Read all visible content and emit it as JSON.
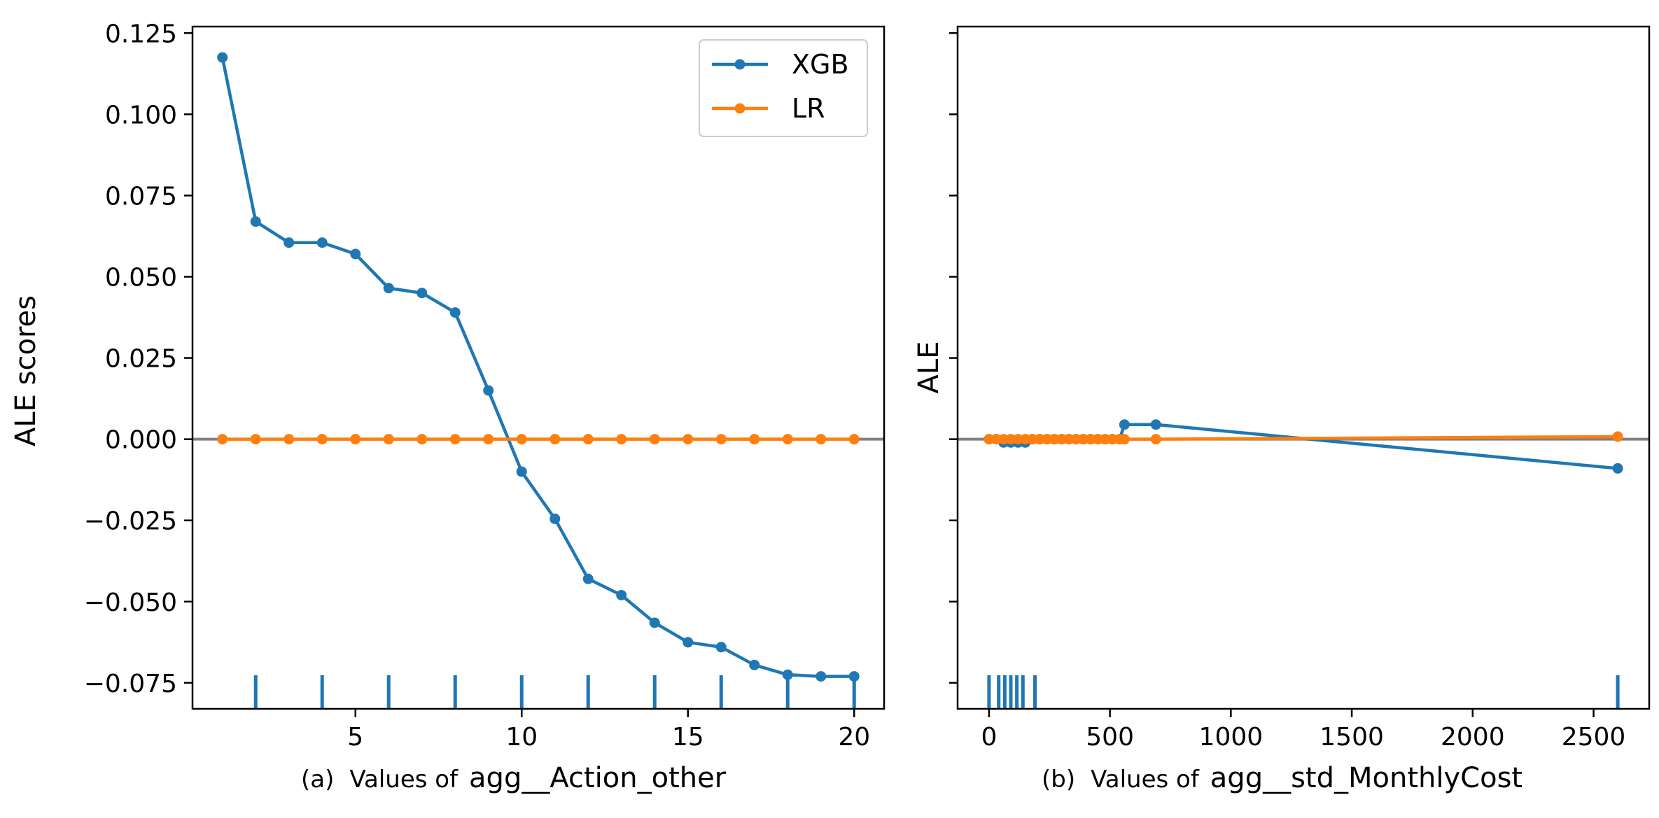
{
  "chart_data": [
    {
      "type": "line",
      "panel_caption": "(a)",
      "caption_prefix": "Values of",
      "xlabel": "agg__Action_other",
      "ylabel": "ALE scores",
      "xlim": [
        0.1,
        20.9
      ],
      "ylim": [
        -0.083,
        0.127
      ],
      "xticks": [
        5,
        10,
        15,
        20
      ],
      "yticks": [
        0.125,
        0.1,
        0.075,
        0.05,
        0.025,
        0.0,
        -0.025,
        -0.05,
        -0.075
      ],
      "ytick_labels": [
        "0.125",
        "0.100",
        "0.075",
        "0.050",
        "0.025",
        "0.000",
        "−0.025",
        "−0.050",
        "−0.075"
      ],
      "zero_line": true,
      "legend": {
        "position": "upper right",
        "entries": [
          "XGB",
          "LR"
        ]
      },
      "rug": [
        2,
        4,
        6,
        8,
        10,
        12,
        14,
        16,
        18,
        20
      ],
      "series": [
        {
          "name": "XGB",
          "color": "#1f77b4",
          "x": [
            1,
            2,
            3,
            4,
            5,
            6,
            7,
            8,
            9,
            10,
            11,
            12,
            13,
            14,
            15,
            16,
            17,
            18,
            19,
            20
          ],
          "y": [
            0.1175,
            0.067,
            0.0605,
            0.0605,
            0.057,
            0.0465,
            0.045,
            0.039,
            0.015,
            -0.01,
            -0.0245,
            -0.043,
            -0.048,
            -0.0565,
            -0.0625,
            -0.064,
            -0.0695,
            -0.0725,
            -0.073,
            -0.073
          ]
        },
        {
          "name": "LR",
          "color": "#ff7f0e",
          "x": [
            1,
            2,
            3,
            4,
            5,
            6,
            7,
            8,
            9,
            10,
            11,
            12,
            13,
            14,
            15,
            16,
            17,
            18,
            19,
            20
          ],
          "y": [
            0,
            0,
            0,
            0,
            0,
            0,
            0,
            0,
            0,
            0,
            0,
            0,
            0,
            0,
            0,
            0,
            0,
            0,
            0,
            0
          ]
        }
      ]
    },
    {
      "type": "line",
      "panel_caption": "(b)",
      "caption_prefix": "Values of",
      "xlabel": "agg__std_MonthlyCost",
      "ylabel": "ALE",
      "xlim": [
        -130,
        2730
      ],
      "ylim": [
        -0.083,
        0.127
      ],
      "xticks": [
        0,
        500,
        1000,
        1500,
        2000,
        2500
      ],
      "yticks": [
        0.125,
        0.1,
        0.075,
        0.05,
        0.025,
        0.0,
        -0.025,
        -0.05,
        -0.075
      ],
      "show_ytick_labels": false,
      "zero_line": true,
      "rug": [
        0,
        40,
        65,
        90,
        115,
        140,
        190,
        2600
      ],
      "series": [
        {
          "name": "XGB",
          "color": "#1f77b4",
          "x": [
            0,
            30,
            60,
            90,
            120,
            150,
            180,
            210,
            240,
            270,
            300,
            330,
            360,
            390,
            420,
            450,
            480,
            510,
            540,
            560,
            690,
            2600
          ],
          "y": [
            0,
            0,
            -0.001,
            -0.001,
            -0.001,
            -0.001,
            0,
            0,
            0,
            0,
            0,
            0,
            0,
            0,
            0,
            0,
            0,
            0,
            0,
            0.0045,
            0.0045,
            -0.009
          ]
        },
        {
          "name": "LR",
          "color": "#ff7f0e",
          "x": [
            0,
            30,
            60,
            90,
            120,
            150,
            180,
            210,
            240,
            270,
            300,
            330,
            360,
            390,
            420,
            450,
            480,
            510,
            540,
            560,
            690,
            2600
          ],
          "y": [
            0,
            0,
            0,
            0,
            0,
            0,
            0,
            0,
            0,
            0,
            0,
            0,
            0,
            0,
            0,
            0,
            0,
            0,
            0,
            0,
            0,
            0.0008
          ]
        }
      ]
    }
  ]
}
